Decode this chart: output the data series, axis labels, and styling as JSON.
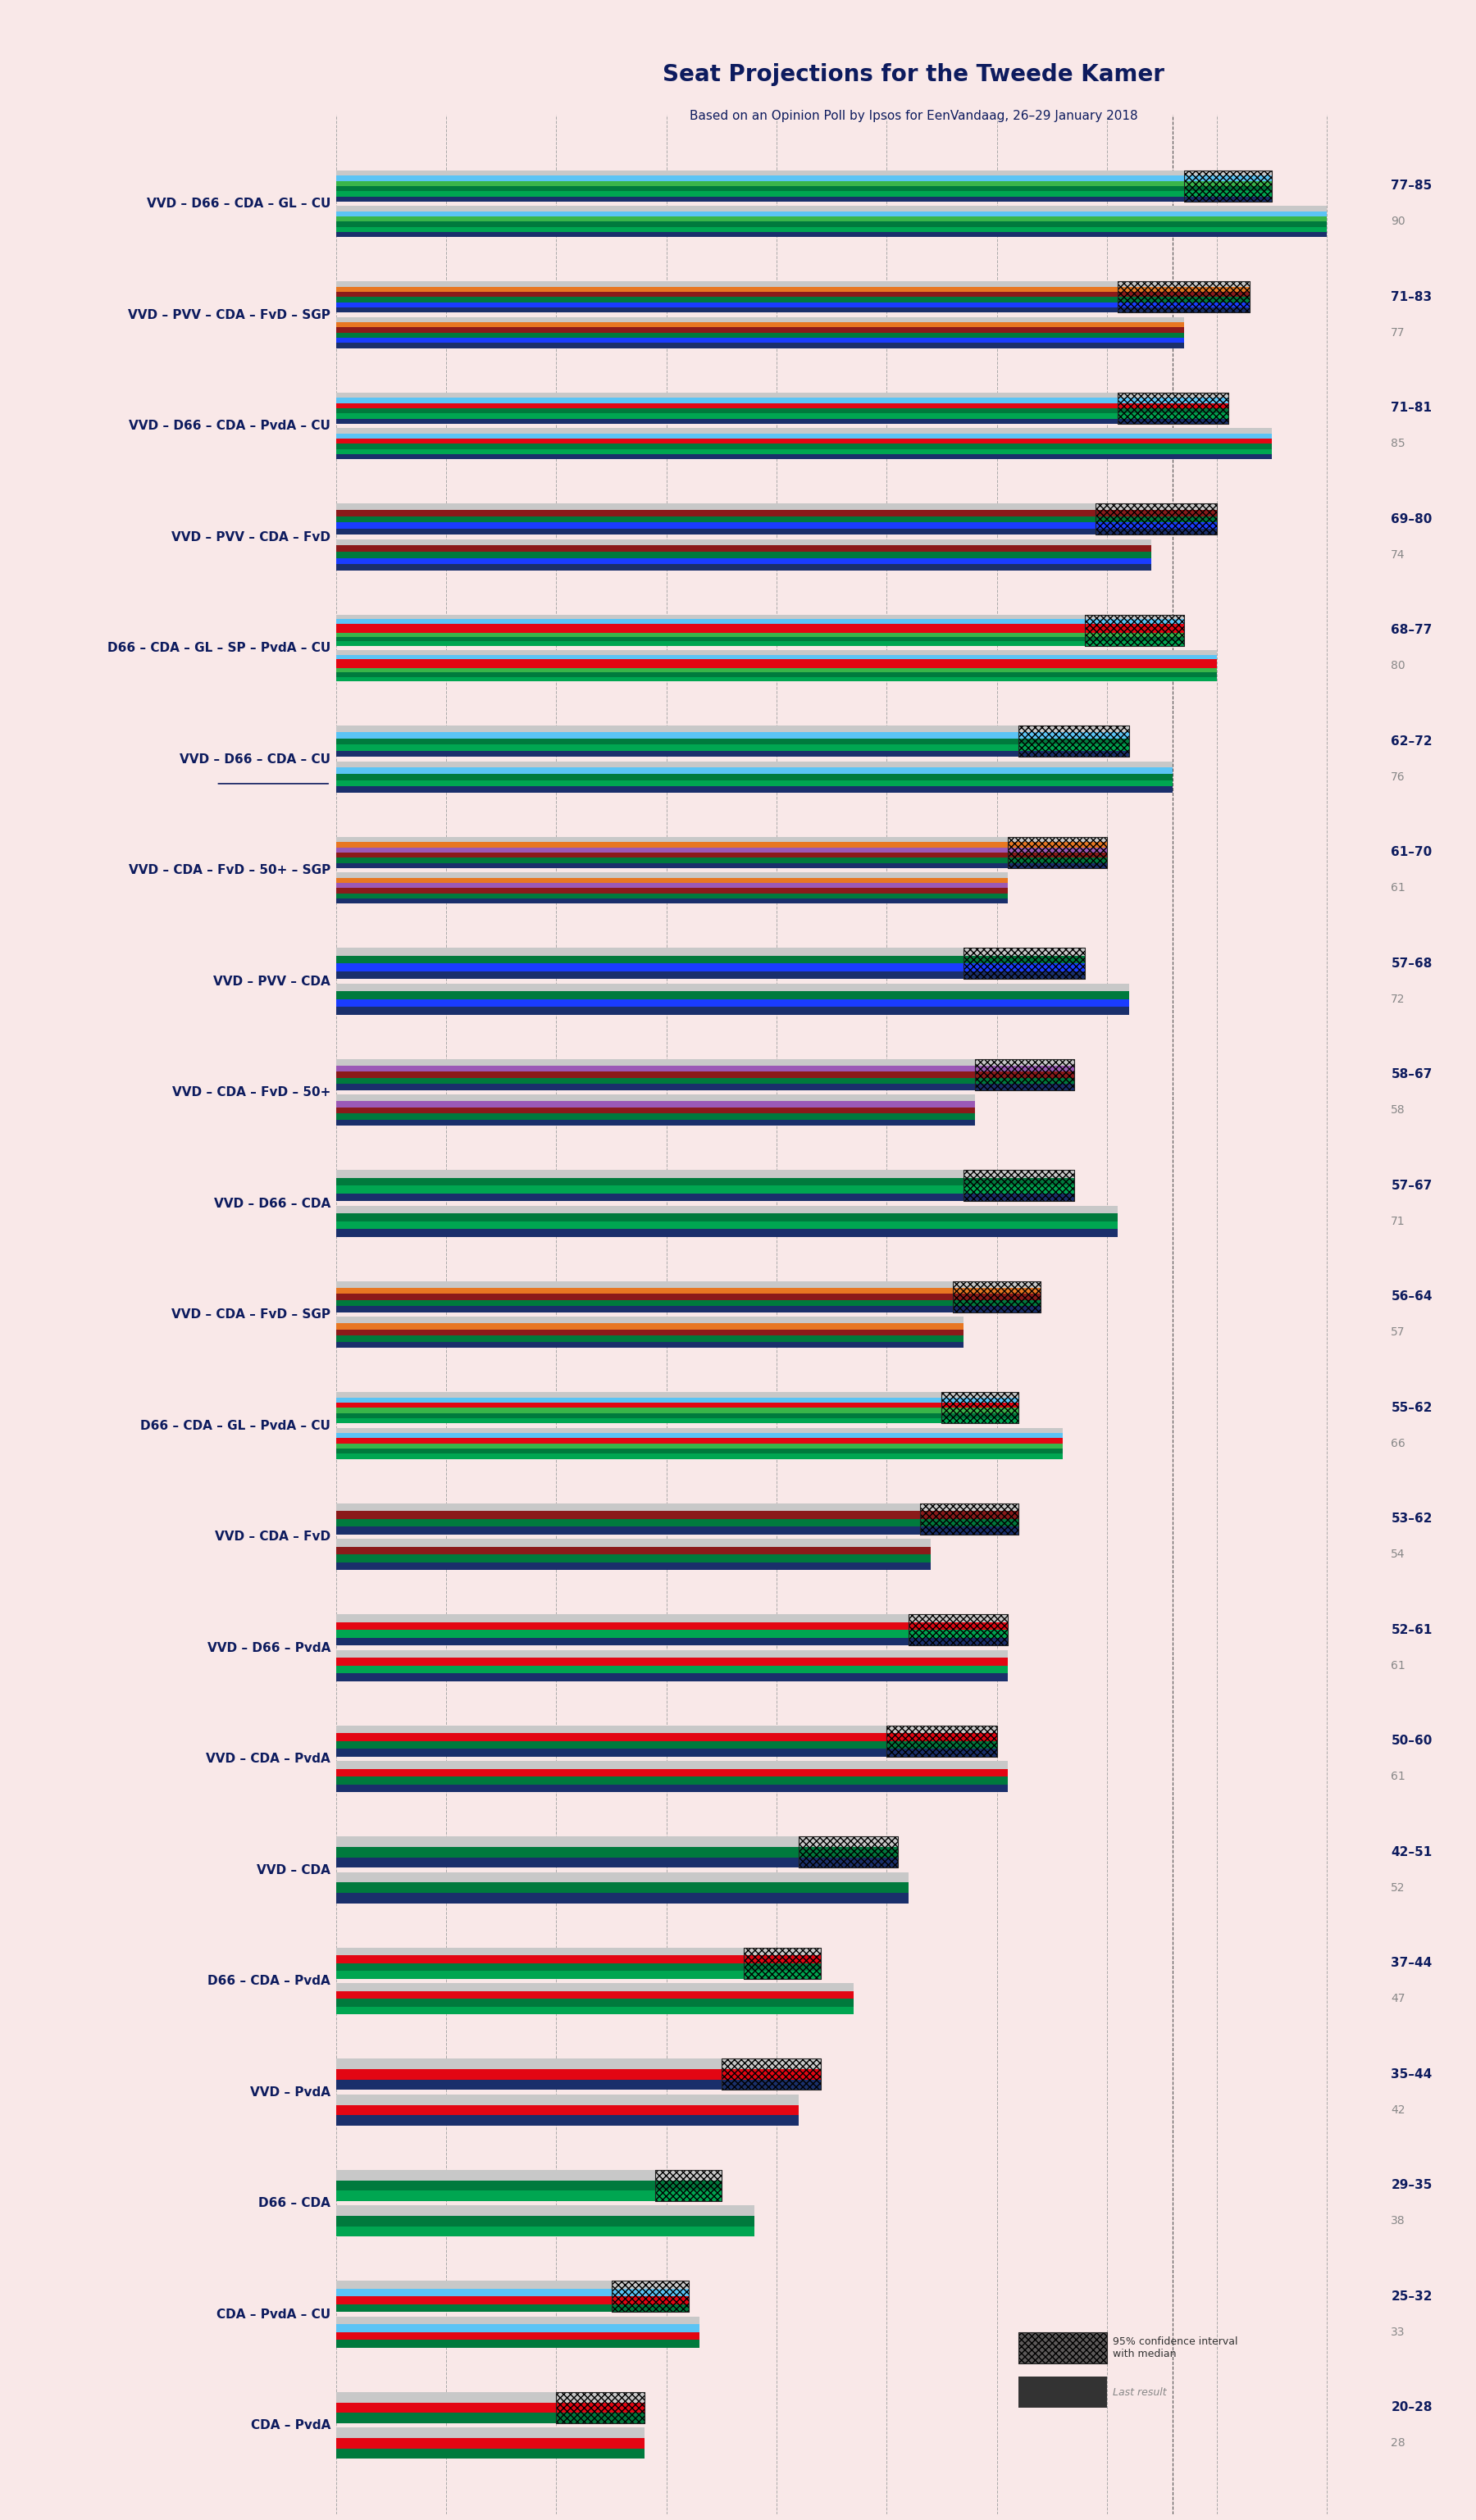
{
  "title": "Seat Projections for the Tweede Kamer",
  "subtitle": "Based on an Opinion Poll by Ipsos for EenVandaag, 26–29 January 2018",
  "background_color": "#f9e8e8",
  "coalitions": [
    {
      "label": "VVD – D66 – CDA – GL – CU",
      "underline": false,
      "range": "77–85",
      "last": 90
    },
    {
      "label": "VVD – PVV – CDA – FvD – SGP",
      "underline": false,
      "range": "71–83",
      "last": 77
    },
    {
      "label": "VVD – D66 – CDA – PvdA – CU",
      "underline": false,
      "range": "71–81",
      "last": 85
    },
    {
      "label": "VVD – PVV – CDA – FvD",
      "underline": false,
      "range": "69–80",
      "last": 74
    },
    {
      "label": "D66 – CDA – GL – SP – PvdA – CU",
      "underline": false,
      "range": "68–77",
      "last": 80
    },
    {
      "label": "VVD – D66 – CDA – CU",
      "underline": true,
      "range": "62–72",
      "last": 76
    },
    {
      "label": "VVD – CDA – FvD – 50+ – SGP",
      "underline": false,
      "range": "61–70",
      "last": 61
    },
    {
      "label": "VVD – PVV – CDA",
      "underline": false,
      "range": "57–68",
      "last": 72
    },
    {
      "label": "VVD – CDA – FvD – 50+",
      "underline": false,
      "range": "58–67",
      "last": 58
    },
    {
      "label": "VVD – D66 – CDA",
      "underline": false,
      "range": "57–67",
      "last": 71
    },
    {
      "label": "VVD – CDA – FvD – SGP",
      "underline": false,
      "range": "56–64",
      "last": 57
    },
    {
      "label": "D66 – CDA – GL – PvdA – CU",
      "underline": false,
      "range": "55–62",
      "last": 66
    },
    {
      "label": "VVD – CDA – FvD",
      "underline": false,
      "range": "53–62",
      "last": 54
    },
    {
      "label": "VVD – D66 – PvdA",
      "underline": false,
      "range": "52–61",
      "last": 61
    },
    {
      "label": "VVD – CDA – PvdA",
      "underline": false,
      "range": "50–60",
      "last": 61
    },
    {
      "label": "VVD – CDA",
      "underline": false,
      "range": "42–51",
      "last": 52
    },
    {
      "label": "D66 – CDA – PvdA",
      "underline": false,
      "range": "37–44",
      "last": 47
    },
    {
      "label": "VVD – PvdA",
      "underline": false,
      "range": "35–44",
      "last": 42
    },
    {
      "label": "D66 – CDA",
      "underline": false,
      "range": "29–35",
      "last": 38
    },
    {
      "label": "CDA – PvdA – CU",
      "underline": false,
      "range": "25–32",
      "last": 33
    },
    {
      "label": "CDA – PvdA",
      "underline": false,
      "range": "20–28",
      "last": 28
    }
  ],
  "coalition_bars": [
    {
      "lo": 77,
      "hi": 85,
      "last": 90,
      "colors": [
        "#1a2f6b",
        "#00a651",
        "#007a3d",
        "#39b54a",
        "#5bc4f5",
        "#c8c8c8"
      ]
    },
    {
      "lo": 71,
      "hi": 83,
      "last": 77,
      "colors": [
        "#1a2f6b",
        "#1a3cff",
        "#007a3d",
        "#8b1a1a",
        "#e87722",
        "#c8c8c8"
      ]
    },
    {
      "lo": 71,
      "hi": 81,
      "last": 85,
      "colors": [
        "#1a2f6b",
        "#00a651",
        "#007a3d",
        "#e30613",
        "#5bc4f5",
        "#c8c8c8"
      ]
    },
    {
      "lo": 69,
      "hi": 80,
      "last": 74,
      "colors": [
        "#1a2f6b",
        "#1a3cff",
        "#007a3d",
        "#8b1a1a",
        "#c8c8c8"
      ]
    },
    {
      "lo": 68,
      "hi": 77,
      "last": 80,
      "colors": [
        "#00a651",
        "#007a3d",
        "#39b54a",
        "#e30613",
        "#e30613",
        "#5bc4f5",
        "#c8c8c8"
      ]
    },
    {
      "lo": 62,
      "hi": 72,
      "last": 76,
      "colors": [
        "#1a2f6b",
        "#00a651",
        "#007a3d",
        "#5bc4f5",
        "#c8c8c8"
      ]
    },
    {
      "lo": 61,
      "hi": 70,
      "last": 61,
      "colors": [
        "#1a2f6b",
        "#007a3d",
        "#8b1a1a",
        "#9b59b6",
        "#e87722",
        "#c8c8c8"
      ]
    },
    {
      "lo": 57,
      "hi": 68,
      "last": 72,
      "colors": [
        "#1a2f6b",
        "#1a3cff",
        "#007a3d",
        "#c8c8c8"
      ]
    },
    {
      "lo": 58,
      "hi": 67,
      "last": 58,
      "colors": [
        "#1a2f6b",
        "#007a3d",
        "#8b1a1a",
        "#9b59b6",
        "#c8c8c8"
      ]
    },
    {
      "lo": 57,
      "hi": 67,
      "last": 71,
      "colors": [
        "#1a2f6b",
        "#00a651",
        "#007a3d",
        "#c8c8c8"
      ]
    },
    {
      "lo": 56,
      "hi": 64,
      "last": 57,
      "colors": [
        "#1a2f6b",
        "#007a3d",
        "#8b1a1a",
        "#e87722",
        "#c8c8c8"
      ]
    },
    {
      "lo": 55,
      "hi": 62,
      "last": 66,
      "colors": [
        "#00a651",
        "#007a3d",
        "#39b54a",
        "#e30613",
        "#5bc4f5",
        "#c8c8c8"
      ]
    },
    {
      "lo": 53,
      "hi": 62,
      "last": 54,
      "colors": [
        "#1a2f6b",
        "#007a3d",
        "#8b1a1a",
        "#c8c8c8"
      ]
    },
    {
      "lo": 52,
      "hi": 61,
      "last": 61,
      "colors": [
        "#1a2f6b",
        "#00a651",
        "#e30613",
        "#c8c8c8"
      ]
    },
    {
      "lo": 50,
      "hi": 60,
      "last": 61,
      "colors": [
        "#1a2f6b",
        "#007a3d",
        "#e30613",
        "#c8c8c8"
      ]
    },
    {
      "lo": 42,
      "hi": 51,
      "last": 52,
      "colors": [
        "#1a2f6b",
        "#007a3d",
        "#c8c8c8"
      ]
    },
    {
      "lo": 37,
      "hi": 44,
      "last": 47,
      "colors": [
        "#00a651",
        "#007a3d",
        "#e30613",
        "#c8c8c8"
      ]
    },
    {
      "lo": 35,
      "hi": 44,
      "last": 42,
      "colors": [
        "#1a2f6b",
        "#e30613",
        "#c8c8c8"
      ]
    },
    {
      "lo": 29,
      "hi": 35,
      "last": 38,
      "colors": [
        "#00a651",
        "#007a3d",
        "#c8c8c8"
      ]
    },
    {
      "lo": 25,
      "hi": 32,
      "last": 33,
      "colors": [
        "#007a3d",
        "#e30613",
        "#5bc4f5",
        "#c8c8c8"
      ]
    },
    {
      "lo": 20,
      "hi": 28,
      "last": 28,
      "colors": [
        "#007a3d",
        "#e30613",
        "#c8c8c8"
      ]
    }
  ],
  "majority": 76,
  "xmax": 95,
  "title_fontsize": 20,
  "subtitle_fontsize": 11,
  "label_fontsize": 11,
  "range_fontsize": 11,
  "last_fontsize": 10
}
